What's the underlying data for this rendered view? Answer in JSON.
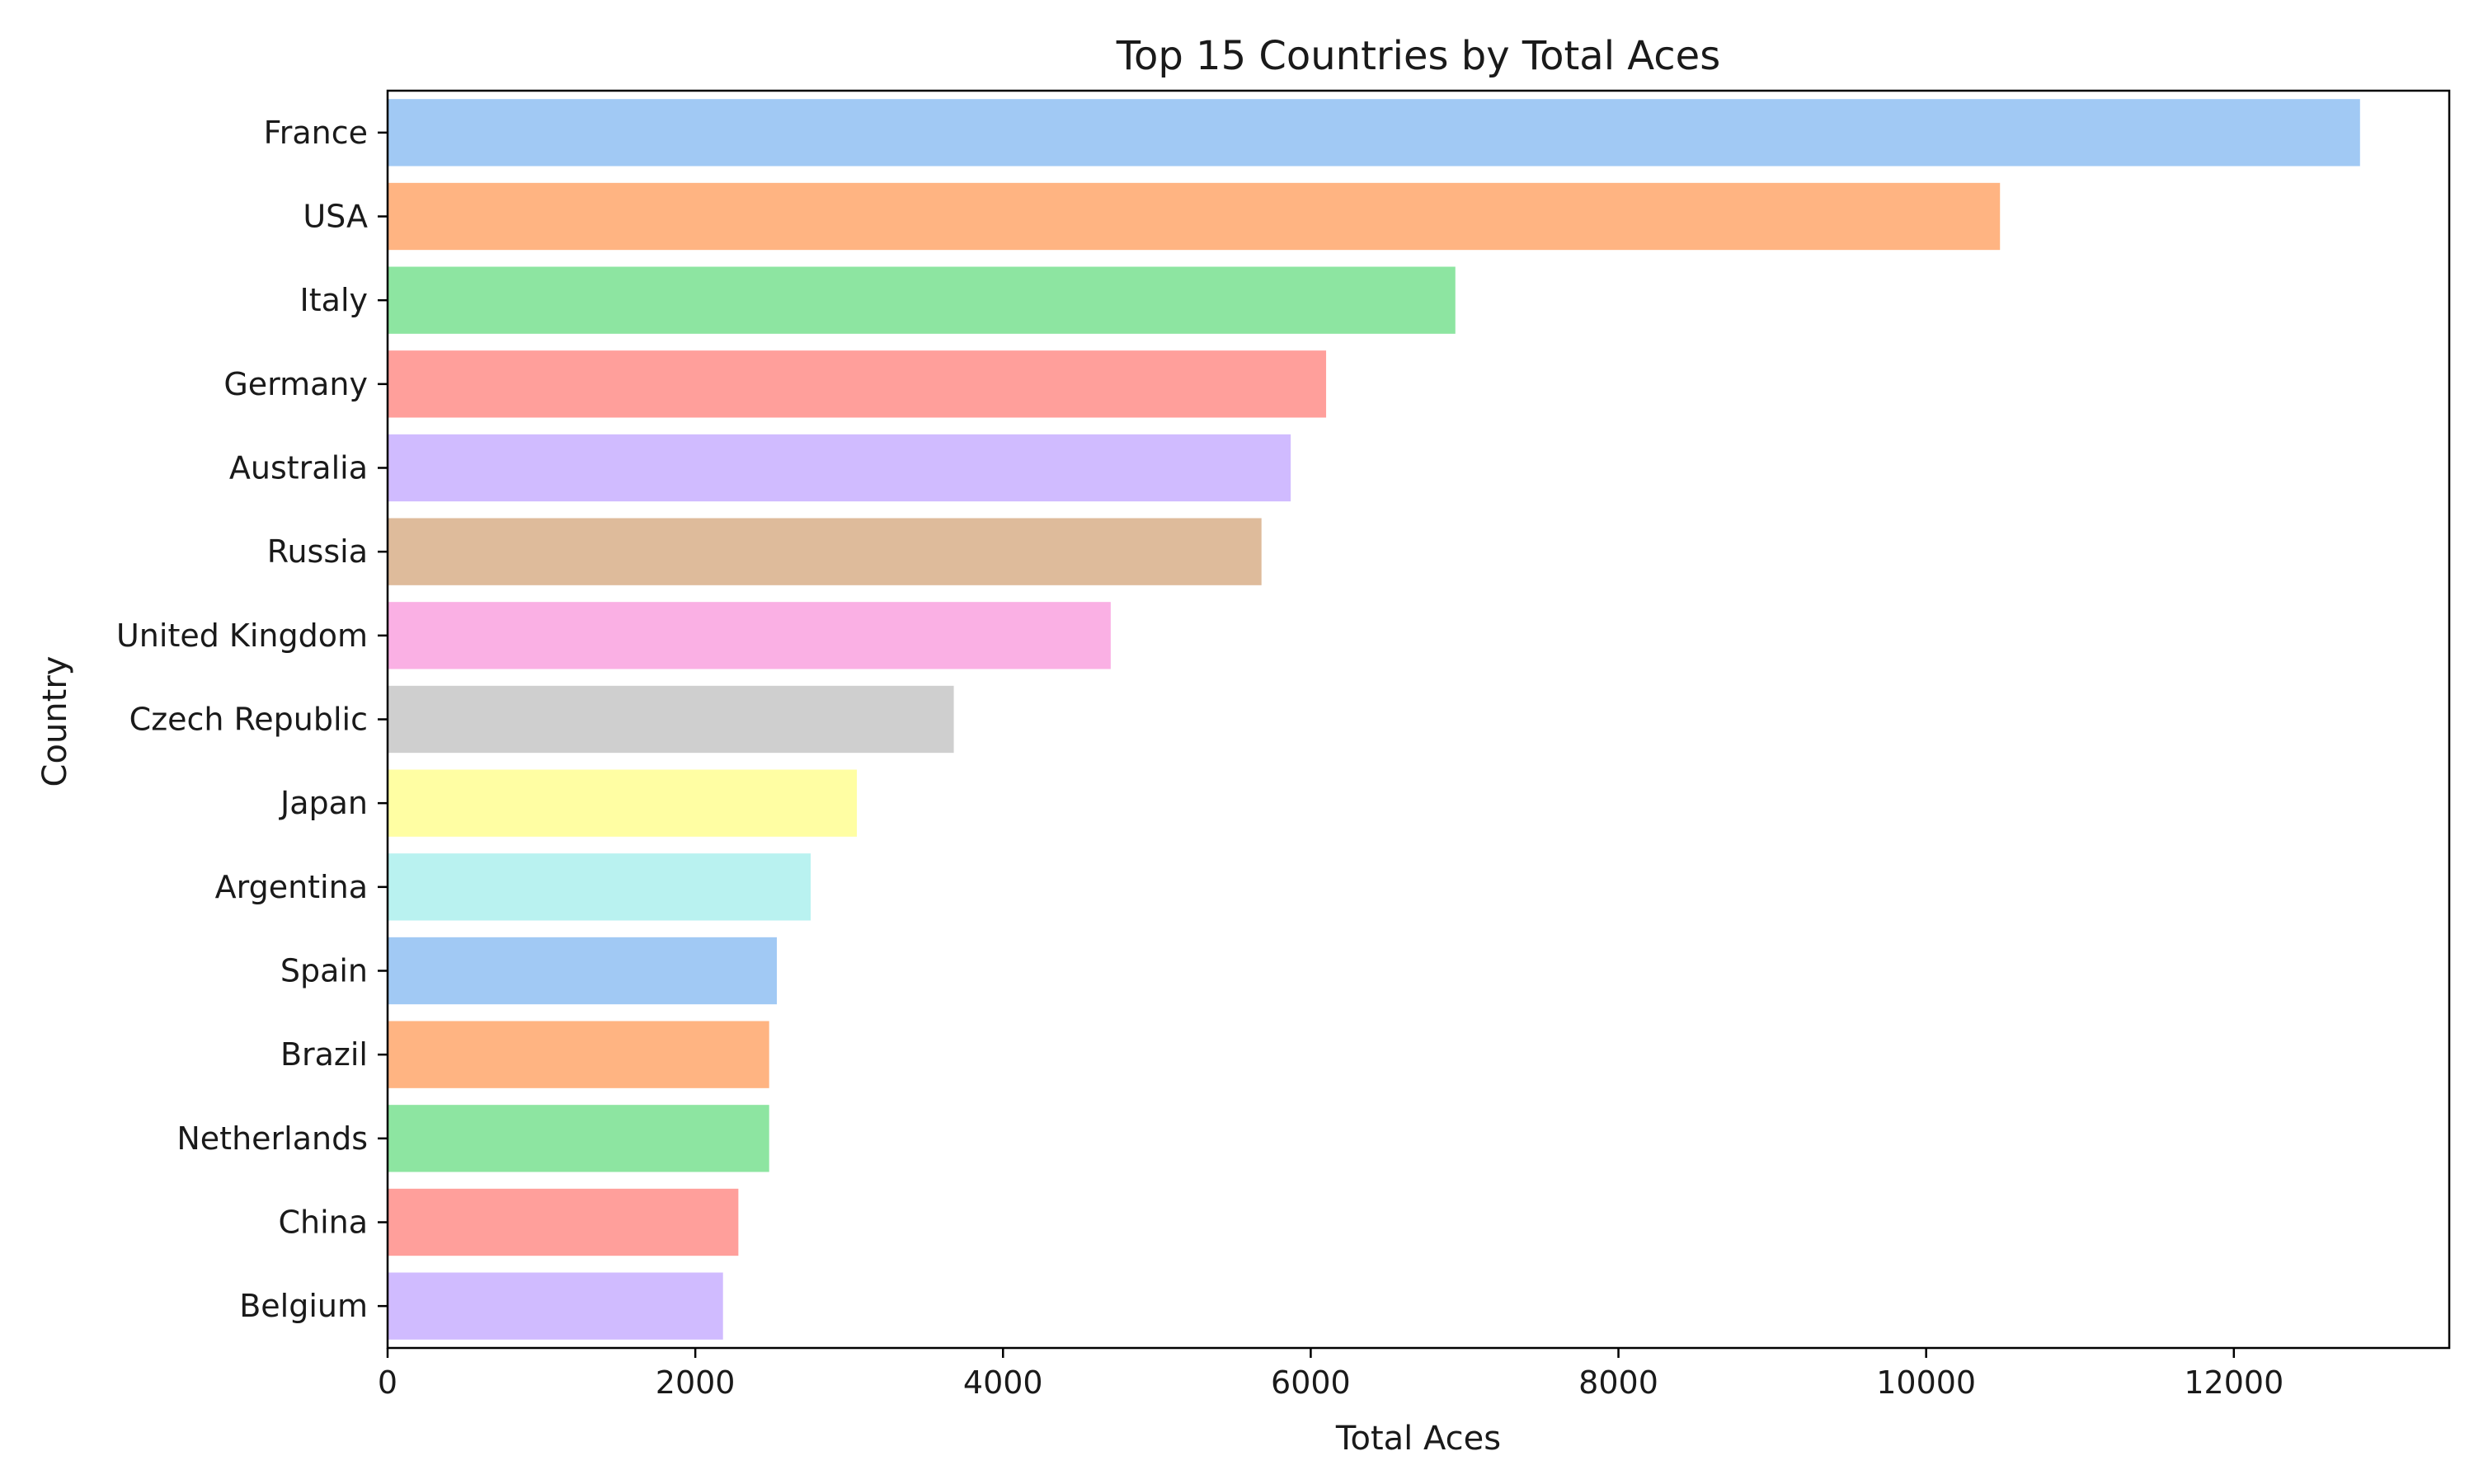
{
  "chart_data": {
    "type": "bar",
    "orientation": "horizontal",
    "title": "Top 15 Countries by Total Aces",
    "xlabel": "Total Aces",
    "ylabel": "Country",
    "xlim": [
      0,
      13400
    ],
    "xticks": [
      0,
      2000,
      4000,
      6000,
      8000,
      10000,
      12000
    ],
    "grid": false,
    "legend": "none",
    "categories": [
      "France",
      "USA",
      "Italy",
      "Germany",
      "Australia",
      "Russia",
      "United Kingdom",
      "Czech Republic",
      "Japan",
      "Argentina",
      "Spain",
      "Brazil",
      "Netherlands",
      "China",
      "Belgium"
    ],
    "values": [
      12820,
      10480,
      6940,
      6100,
      5870,
      5680,
      4700,
      3680,
      3050,
      2750,
      2530,
      2480,
      2480,
      2280,
      2180
    ],
    "colors": [
      "#a1c9f4",
      "#ffb482",
      "#8de5a1",
      "#ff9f9b",
      "#d0bbff",
      "#debb9b",
      "#fab0e4",
      "#cfcfcf",
      "#fffea3",
      "#b9f2f0",
      "#a1c9f4",
      "#ffb482",
      "#8de5a1",
      "#ff9f9b",
      "#d0bbff"
    ]
  }
}
